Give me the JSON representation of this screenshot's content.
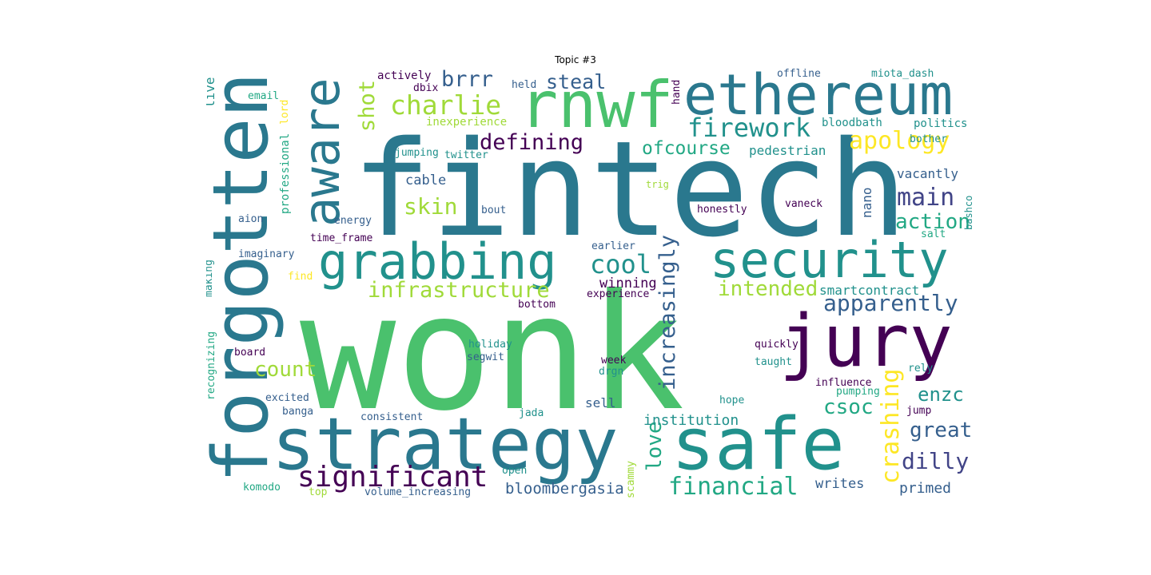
{
  "title": "Topic #3",
  "palette": {
    "teal_dark": "#2a788e",
    "teal": "#21918c",
    "green": "#22a884",
    "lime": "#4ac16d",
    "yellowgreen": "#a0da39",
    "yellow": "#fde725",
    "purple": "#440154",
    "indigo": "#414487",
    "slate": "#355f8d",
    "light": "#7ad151"
  },
  "words": [
    "wonk",
    "fintech",
    "forgotten",
    "strategy",
    "safe",
    "rnwf",
    "jury",
    "ethereum",
    "security",
    "aware",
    "grabbing",
    "significant",
    "charlie",
    "firework",
    "apology",
    "infrastructure",
    "brrr",
    "steal",
    "defining",
    "shot",
    "cool",
    "main",
    "ofcourse",
    "skin",
    "apparently",
    "count",
    "action",
    "increasingly",
    "intended",
    "crashing",
    "financial",
    "dilly",
    "great",
    "csoc",
    "enzc",
    "love",
    "bloombergasia",
    "institution",
    "winning",
    "cable",
    "vacantly",
    "pedestrian",
    "nano",
    "smartcontract",
    "sell",
    "primed",
    "writes",
    "live",
    "email",
    "actively",
    "dbix",
    "offline",
    "miota_dash",
    "held",
    "hand",
    "inexperience",
    "bloodbath",
    "politics",
    "lord",
    "professional",
    "jumping",
    "twitter",
    "bother",
    "trig",
    "bashco",
    "aion",
    "energy",
    "bout",
    "honestly",
    "vaneck",
    "time_frame",
    "salt",
    "earlier",
    "imaginary",
    "making",
    "find",
    "experience",
    "bottom",
    "holiday",
    "segwit",
    "week",
    "drgn",
    "quickly",
    "taught",
    "recognizing",
    "board",
    "rely",
    "influence",
    "pumping",
    "excited",
    "hope",
    "banga",
    "consistent",
    "jada",
    "jump",
    "scammy",
    "open",
    "komodo",
    "top",
    "volume_increasing"
  ]
}
